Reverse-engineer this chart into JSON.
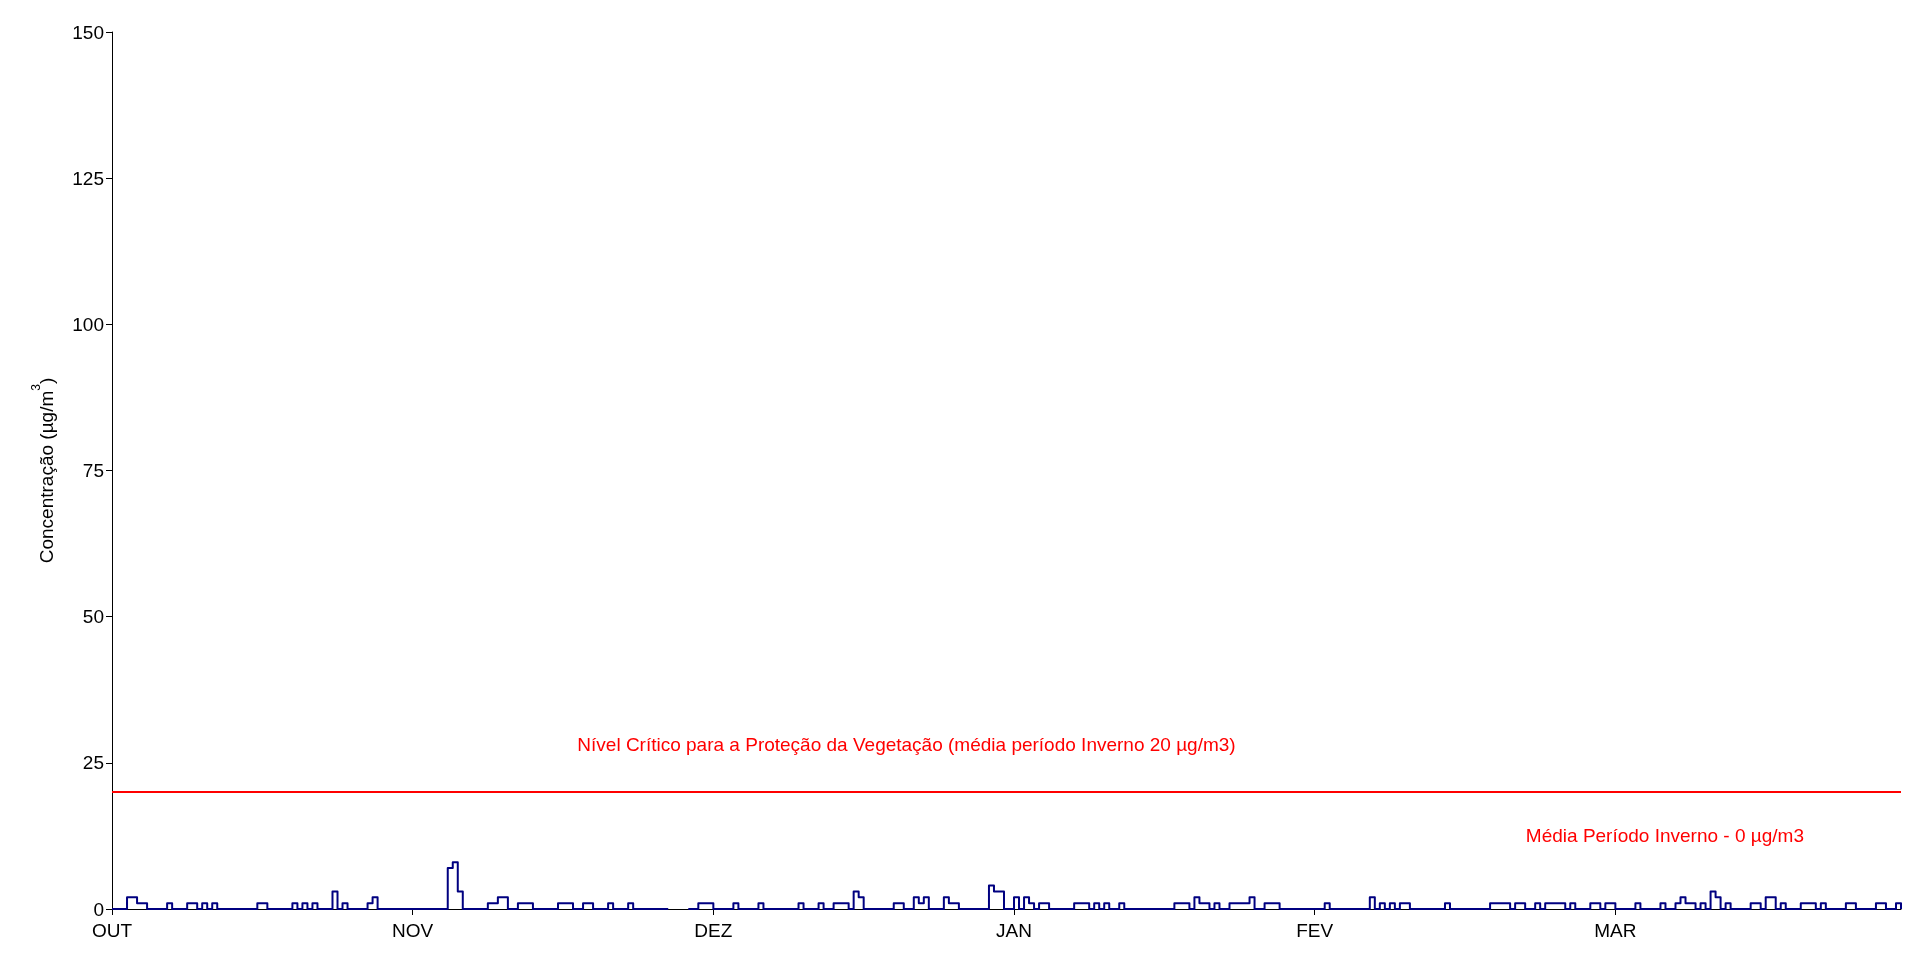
{
  "chart_data": {
    "type": "step",
    "ylabel": "Concentração (µg/m$^{3}$)",
    "categories": [
      "OUT",
      null,
      null,
      null,
      null,
      null,
      null,
      null,
      null,
      null,
      null,
      null,
      null,
      null,
      null,
      null,
      null,
      null,
      null,
      null,
      null,
      null,
      null,
      null,
      null,
      null,
      null,
      null,
      null,
      null,
      null,
      null,
      null,
      null,
      null,
      null,
      null,
      null,
      null,
      null,
      null,
      null,
      null,
      null,
      null,
      null,
      null,
      null,
      null,
      null,
      null,
      null,
      null,
      null,
      null,
      null,
      null,
      null,
      null,
      null,
      "NOV",
      null,
      null,
      null,
      null,
      null,
      null,
      null,
      null,
      null,
      null,
      null,
      null,
      null,
      null,
      null,
      null,
      null,
      null,
      null,
      null,
      null,
      null,
      null,
      null,
      null,
      null,
      null,
      null,
      null,
      null,
      null,
      null,
      null,
      null,
      null,
      null,
      null,
      null,
      null,
      null,
      null,
      null,
      null,
      null,
      null,
      null,
      null,
      null,
      null,
      null,
      null,
      null,
      null,
      null,
      null,
      null,
      null,
      null,
      null,
      "DEZ",
      null,
      null,
      null,
      null,
      null,
      null,
      null,
      null,
      null,
      null,
      null,
      null,
      null,
      null,
      null,
      null,
      null,
      null,
      null,
      null,
      null,
      null,
      null,
      null,
      null,
      null,
      null,
      null,
      null,
      null,
      null,
      null,
      null,
      null,
      null,
      null,
      null,
      null,
      null,
      null,
      null,
      null,
      null,
      null,
      null,
      null,
      null,
      null,
      null,
      null,
      null,
      null,
      null,
      null,
      null,
      null,
      null,
      null,
      null,
      "JAN",
      null,
      null,
      null,
      null,
      null,
      null,
      null,
      null,
      null,
      null,
      null,
      null,
      null,
      null,
      null,
      null,
      null,
      null,
      null,
      null,
      null,
      null,
      null,
      null,
      null,
      null,
      null,
      null,
      null,
      null,
      null,
      null,
      null,
      null,
      null,
      null,
      null,
      null,
      null,
      null,
      null,
      null,
      null,
      null,
      null,
      null,
      null,
      null,
      null,
      null,
      null,
      null,
      null,
      null,
      null,
      null,
      null,
      null,
      null,
      "FEV",
      null,
      null,
      null,
      null,
      null,
      null,
      null,
      null,
      null,
      null,
      null,
      null,
      null,
      null,
      null,
      null,
      null,
      null,
      null,
      null,
      null,
      null,
      null,
      null,
      null,
      null,
      null,
      null,
      null,
      null,
      null,
      null,
      null,
      null,
      null,
      null,
      null,
      null,
      null,
      null,
      null,
      null,
      null,
      null,
      null,
      null,
      null,
      null,
      null,
      null,
      null,
      null,
      null,
      null,
      null,
      null,
      null,
      null,
      null,
      "MAR",
      null,
      null,
      null,
      null,
      null,
      null,
      null,
      null,
      null,
      null,
      null,
      null,
      null,
      null,
      null,
      null,
      null,
      null,
      null,
      null,
      null,
      null,
      null,
      null,
      null,
      null,
      null,
      null,
      null,
      null,
      null,
      null,
      null,
      null,
      null,
      null,
      null,
      null,
      null,
      null,
      null,
      null,
      null,
      null,
      null,
      null,
      null,
      null,
      null,
      null,
      null,
      null,
      null,
      null,
      null,
      null,
      null
    ],
    "ylim": [
      0,
      150
    ],
    "yticks": [
      0,
      25,
      50,
      75,
      100,
      125,
      150
    ],
    "grid": false,
    "marker": "none",
    "line_style": "solid",
    "series": [
      {
        "color": "#000080",
        "values": [
          0,
          0,
          0,
          2,
          2,
          1,
          1,
          0,
          0,
          0,
          0,
          1,
          0,
          0,
          0,
          1,
          1,
          0,
          1,
          0,
          1,
          0,
          0,
          0,
          0,
          0,
          0,
          0,
          0,
          1,
          1,
          0,
          0,
          0,
          0,
          0,
          1,
          0,
          1,
          0,
          1,
          0,
          0,
          0,
          3,
          0,
          1,
          0,
          0,
          0,
          0,
          1,
          2,
          0,
          0,
          0,
          0,
          0,
          0,
          0,
          0,
          0,
          0,
          0,
          0,
          0,
          0,
          7,
          8,
          3,
          0,
          0,
          0,
          0,
          0,
          1,
          1,
          2,
          2,
          0,
          0,
          1,
          1,
          1,
          0,
          0,
          0,
          0,
          0,
          1,
          1,
          1,
          0,
          0,
          1,
          1,
          0,
          0,
          0,
          1,
          0,
          0,
          0,
          1,
          0,
          0,
          0,
          0,
          0,
          0,
          0,
          null,
          null,
          null,
          null,
          0,
          0,
          1,
          1,
          1,
          0,
          0,
          0,
          0,
          1,
          0,
          0,
          0,
          0,
          1,
          0,
          0,
          0,
          0,
          0,
          0,
          0,
          1,
          0,
          0,
          0,
          1,
          0,
          0,
          1,
          1,
          1,
          0,
          3,
          2,
          0,
          0,
          0,
          0,
          0,
          0,
          1,
          1,
          0,
          0,
          2,
          1,
          2,
          0,
          0,
          0,
          2,
          1,
          1,
          0,
          0,
          0,
          0,
          0,
          0,
          4,
          3,
          3,
          0,
          0,
          2,
          0,
          2,
          1,
          0,
          1,
          1,
          0,
          0,
          0,
          0,
          0,
          1,
          1,
          1,
          0,
          1,
          0,
          1,
          0,
          0,
          1,
          0,
          0,
          0,
          0,
          0,
          0,
          0,
          0,
          0,
          0,
          1,
          1,
          1,
          0,
          2,
          1,
          1,
          0,
          1,
          0,
          0,
          1,
          1,
          1,
          1,
          2,
          0,
          0,
          1,
          1,
          1,
          0,
          0,
          0,
          0,
          0,
          0,
          0,
          0,
          0,
          1,
          0,
          0,
          0,
          0,
          0,
          0,
          0,
          0,
          2,
          0,
          1,
          0,
          1,
          0,
          1,
          1,
          0,
          0,
          0,
          0,
          0,
          0,
          0,
          1,
          0,
          0,
          0,
          0,
          0,
          0,
          0,
          0,
          1,
          1,
          1,
          1,
          0,
          1,
          1,
          0,
          0,
          1,
          0,
          1,
          1,
          1,
          1,
          0,
          1,
          0,
          0,
          0,
          1,
          1,
          0,
          1,
          1,
          0,
          0,
          0,
          0,
          1,
          0,
          0,
          0,
          0,
          1,
          0,
          0,
          1,
          2,
          1,
          1,
          0,
          1,
          0,
          3,
          2,
          0,
          1,
          0,
          0,
          0,
          0,
          1,
          1,
          0,
          2,
          2,
          0,
          1,
          0,
          0,
          0,
          1,
          1,
          1,
          0,
          1,
          0,
          0,
          0,
          0,
          1,
          1,
          0,
          0,
          0,
          0,
          1,
          1,
          0,
          0,
          1,
          0
        ]
      }
    ],
    "ref_lines": [
      {
        "axis": "y",
        "value": 20,
        "label": "Nível Crítico para a Proteção da Vegetação (média período Inverno 20 µg/m3)",
        "color": "#ff0000",
        "line_style": "solid"
      }
    ],
    "annotations": [
      "Média Período Inverno - 0 µg/m3"
    ]
  }
}
